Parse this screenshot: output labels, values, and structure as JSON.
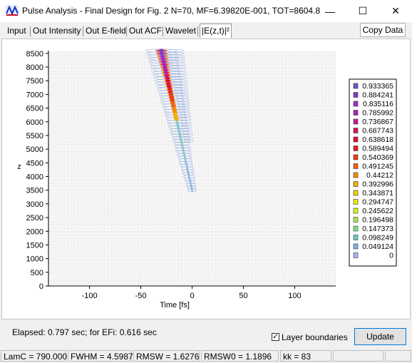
{
  "window": {
    "title": "Pulse Analysis - Final Design for Fig. 2  N=70, MF=6.39820E-001, TOT=8604.8",
    "minimize_glyph": "—",
    "maximize_glyph": "☐",
    "close_glyph": "✕"
  },
  "tabs": [
    {
      "label": "Input",
      "active": false
    },
    {
      "label": "Out Intensity",
      "active": false
    },
    {
      "label": "Out E-field",
      "active": false
    },
    {
      "label": "Out ACF",
      "active": false
    },
    {
      "label": "Wavelet",
      "active": false
    },
    {
      "label": "|E(z,t)|²",
      "active": true
    }
  ],
  "copy_button": "Copy Data",
  "chart_data": {
    "type": "heatmap",
    "style": "contour",
    "xlabel": "Time [fs]",
    "ylabel": "z",
    "xlim": [
      -140,
      140
    ],
    "ylim": [
      0,
      8600
    ],
    "x_ticks": [
      "-100",
      "-50",
      "0",
      "50",
      "100"
    ],
    "x_tick_values": [
      -100,
      -50,
      0,
      50,
      100
    ],
    "y_ticks": [
      "0",
      "500",
      "1000",
      "1500",
      "2000",
      "2500",
      "3000",
      "3500",
      "4000",
      "4500",
      "5000",
      "5500",
      "6000",
      "6500",
      "7000",
      "7500",
      "8000",
      "8500"
    ],
    "y_tick_values": [
      0,
      500,
      1000,
      1500,
      2000,
      2500,
      3000,
      3500,
      4000,
      4500,
      5000,
      5500,
      6000,
      6500,
      7000,
      7500,
      8000,
      8500
    ],
    "layer_boundaries": true,
    "legend_position": "right",
    "legend": [
      {
        "label": "0.933365",
        "color": "#6a5acd"
      },
      {
        "label": "0.884241",
        "color": "#7b3fd0"
      },
      {
        "label": "0.835116",
        "color": "#9a2fd0"
      },
      {
        "label": "0.785992",
        "color": "#b020b8"
      },
      {
        "label": "0.736867",
        "color": "#c8189a"
      },
      {
        "label": "0.687743",
        "color": "#d81060"
      },
      {
        "label": "0.638618",
        "color": "#e01030"
      },
      {
        "label": "0.589494",
        "color": "#e82020"
      },
      {
        "label": "0.540369",
        "color": "#f03c10"
      },
      {
        "label": "0.491245",
        "color": "#f86010"
      },
      {
        "label": "0.44212",
        "color": "#f88a00"
      },
      {
        "label": "0.392996",
        "color": "#f8b000"
      },
      {
        "label": "0.343871",
        "color": "#f8d000"
      },
      {
        "label": "0.294747",
        "color": "#f0e800"
      },
      {
        "label": "0.245622",
        "color": "#d8f020"
      },
      {
        "label": "0.196498",
        "color": "#a8e850"
      },
      {
        "label": "0.147373",
        "color": "#80e080"
      },
      {
        "label": "0.098249",
        "color": "#70c8c0"
      },
      {
        "label": "0.049124",
        "color": "#80b0e0"
      },
      {
        "label": "0",
        "color": "#a8b4ff"
      }
    ],
    "pulse_track": {
      "start": {
        "t": 0,
        "z": 3500
      },
      "end": {
        "t": -30,
        "z": 8600
      },
      "peak_start_z": 6100
    }
  },
  "info": {
    "elapsed": "Elapsed:   0.797 sec; for EFi:   0.616 sec",
    "layer_boundaries_label": "Layer boundaries",
    "layer_boundaries_checked": "✓",
    "update_button": "Update"
  },
  "status": [
    {
      "label": "LamC = 790.000"
    },
    {
      "label": "FWHM = 4.5987"
    },
    {
      "label": "RMSW = 1.6276"
    },
    {
      "label": "RMSW0 = 1.1896"
    },
    {
      "label": "kk = 83"
    },
    {
      "label": ""
    },
    {
      "label": ""
    }
  ]
}
